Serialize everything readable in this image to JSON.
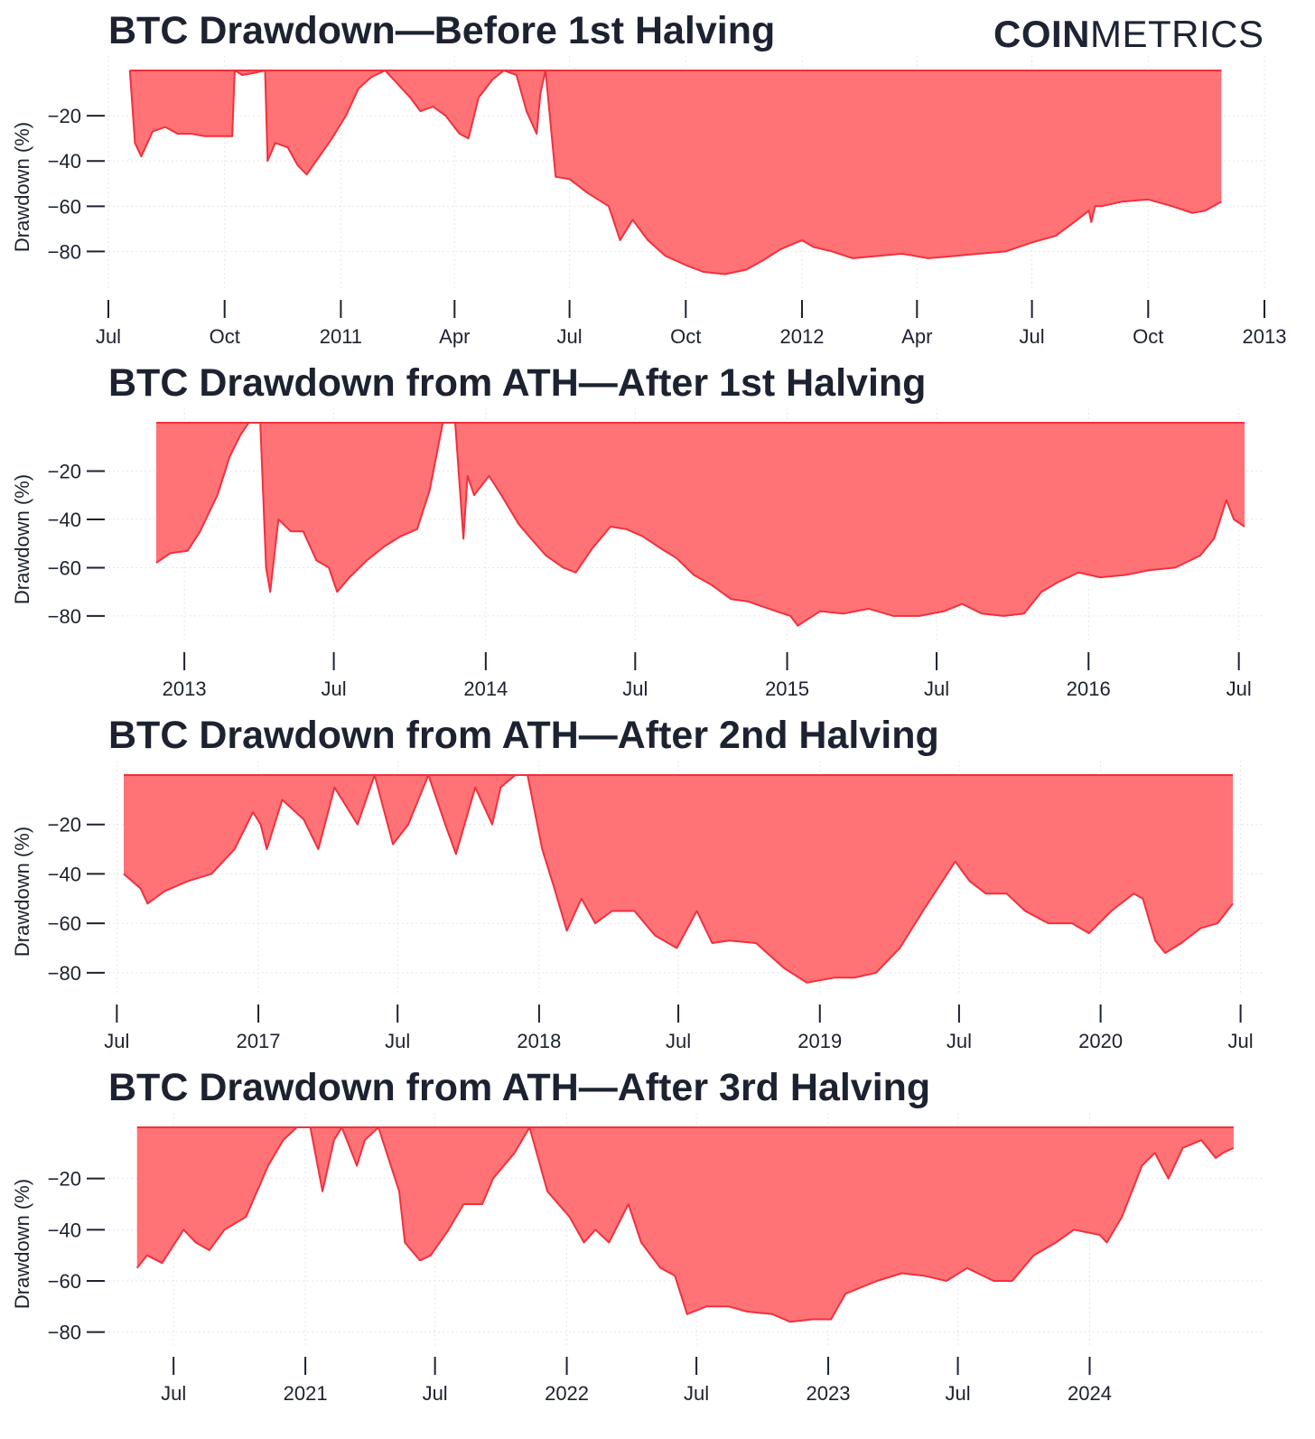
{
  "logo": {
    "bold": "COIN",
    "light": "METRICS"
  },
  "colors": {
    "fill": "#ff7276",
    "line": "#f2303d",
    "text": "#1c2230",
    "grid": "#e6e6e6"
  },
  "chart_data": [
    {
      "type": "area",
      "title": "BTC Drawdown—Before 1st Halving",
      "ylabel": "Drawdown (%)",
      "ylim": [
        -95,
        0
      ],
      "yticks": [
        -20,
        -40,
        -60,
        -80
      ],
      "xlim": [
        "2010-07-01",
        "2013-01-01"
      ],
      "xticks": [
        {
          "date": "2010-07-01",
          "label": "Jul"
        },
        {
          "date": "2010-10-01",
          "label": "Oct"
        },
        {
          "date": "2011-01-01",
          "label": "2011"
        },
        {
          "date": "2011-04-01",
          "label": "Apr"
        },
        {
          "date": "2011-07-01",
          "label": "Jul"
        },
        {
          "date": "2011-10-01",
          "label": "Oct"
        },
        {
          "date": "2012-01-01",
          "label": "2012"
        },
        {
          "date": "2012-04-01",
          "label": "Apr"
        },
        {
          "date": "2012-07-01",
          "label": "Jul"
        },
        {
          "date": "2012-10-01",
          "label": "Oct"
        },
        {
          "date": "2013-01-01",
          "label": "2013"
        }
      ],
      "grid": true,
      "x": [
        "2010-07-18",
        "2010-07-22",
        "2010-07-27",
        "2010-08-05",
        "2010-08-15",
        "2010-08-25",
        "2010-09-05",
        "2010-09-15",
        "2010-09-25",
        "2010-10-07",
        "2010-10-09",
        "2010-10-15",
        "2010-10-25",
        "2010-11-02",
        "2010-11-04",
        "2010-11-10",
        "2010-11-20",
        "2010-11-28",
        "2010-12-05",
        "2010-12-15",
        "2010-12-25",
        "2011-01-05",
        "2011-01-15",
        "2011-01-25",
        "2011-02-05",
        "2011-02-15",
        "2011-02-25",
        "2011-03-05",
        "2011-03-15",
        "2011-03-25",
        "2011-04-05",
        "2011-04-12",
        "2011-04-20",
        "2011-05-01",
        "2011-05-10",
        "2011-05-20",
        "2011-05-28",
        "2011-06-05",
        "2011-06-08",
        "2011-06-12",
        "2011-06-20",
        "2011-07-01",
        "2011-07-15",
        "2011-08-01",
        "2011-08-10",
        "2011-08-20",
        "2011-09-01",
        "2011-09-15",
        "2011-10-01",
        "2011-10-15",
        "2011-11-01",
        "2011-11-18",
        "2011-12-01",
        "2011-12-15",
        "2012-01-01",
        "2012-01-10",
        "2012-01-25",
        "2012-02-10",
        "2012-03-01",
        "2012-03-20",
        "2012-04-10",
        "2012-05-01",
        "2012-05-20",
        "2012-06-10",
        "2012-07-01",
        "2012-07-20",
        "2012-08-01",
        "2012-08-15",
        "2012-08-17",
        "2012-08-20",
        "2012-08-25",
        "2012-09-10",
        "2012-10-01",
        "2012-10-20",
        "2012-11-05",
        "2012-11-15",
        "2012-11-28"
      ],
      "values": [
        0,
        -32,
        -38,
        -27,
        -25,
        -28,
        -28,
        -29,
        -29,
        -29,
        0,
        -2,
        -1,
        0,
        -40,
        -32,
        -34,
        -42,
        -46,
        -38,
        -30,
        -20,
        -8,
        -3,
        0,
        -6,
        -12,
        -18,
        -16,
        -20,
        -28,
        -30,
        -12,
        -4,
        0,
        -2,
        -18,
        -28,
        -10,
        0,
        -47,
        -48,
        -54,
        -60,
        -75,
        -66,
        -75,
        -82,
        -86,
        -89,
        -90,
        -88,
        -84,
        -79,
        -75,
        -78,
        -80,
        -83,
        -82,
        -81,
        -83,
        -82,
        -81,
        -80,
        -76,
        -73,
        -68,
        -62,
        -67,
        -60,
        -60,
        -58,
        -57,
        -60,
        -63,
        -62,
        -58
      ]
    },
    {
      "type": "area",
      "title": "BTC Drawdown from ATH—After 1st Halving",
      "ylabel": "Drawdown (%)",
      "ylim": [
        -89,
        0
      ],
      "yticks": [
        -20,
        -40,
        -60,
        -80
      ],
      "xlim": [
        "2012-10-01",
        "2016-08-01"
      ],
      "xticks": [
        {
          "date": "2013-01-01",
          "label": "2013"
        },
        {
          "date": "2013-07-01",
          "label": "Jul"
        },
        {
          "date": "2014-01-01",
          "label": "2014"
        },
        {
          "date": "2014-07-01",
          "label": "Jul"
        },
        {
          "date": "2015-01-01",
          "label": "2015"
        },
        {
          "date": "2015-07-01",
          "label": "Jul"
        },
        {
          "date": "2016-01-01",
          "label": "2016"
        },
        {
          "date": "2016-07-01",
          "label": "Jul"
        }
      ],
      "grid": true,
      "x": [
        "2012-11-28",
        "2012-12-15",
        "2013-01-05",
        "2013-01-20",
        "2013-02-10",
        "2013-02-25",
        "2013-03-10",
        "2013-03-20",
        "2013-04-03",
        "2013-04-10",
        "2013-04-15",
        "2013-04-25",
        "2013-05-10",
        "2013-05-25",
        "2013-06-10",
        "2013-06-25",
        "2013-07-05",
        "2013-07-20",
        "2013-08-10",
        "2013-09-01",
        "2013-09-20",
        "2013-10-10",
        "2013-10-25",
        "2013-11-10",
        "2013-11-25",
        "2013-12-05",
        "2013-12-10",
        "2013-12-18",
        "2014-01-05",
        "2014-01-20",
        "2014-02-10",
        "2014-02-25",
        "2014-03-15",
        "2014-04-05",
        "2014-04-20",
        "2014-05-10",
        "2014-06-01",
        "2014-06-20",
        "2014-07-10",
        "2014-08-01",
        "2014-08-20",
        "2014-09-10",
        "2014-10-01",
        "2014-10-25",
        "2014-11-15",
        "2014-12-10",
        "2015-01-05",
        "2015-01-14",
        "2015-02-10",
        "2015-03-10",
        "2015-04-10",
        "2015-05-10",
        "2015-06-10",
        "2015-07-10",
        "2015-08-01",
        "2015-08-25",
        "2015-09-20",
        "2015-10-15",
        "2015-11-05",
        "2015-11-25",
        "2015-12-20",
        "2016-01-15",
        "2016-02-15",
        "2016-03-15",
        "2016-04-15",
        "2016-05-15",
        "2016-06-01",
        "2016-06-16",
        "2016-06-25",
        "2016-07-08"
      ],
      "values": [
        -58,
        -54,
        -53,
        -45,
        -30,
        -14,
        -5,
        0,
        0,
        -60,
        -70,
        -40,
        -45,
        -45,
        -57,
        -60,
        -70,
        -64,
        -57,
        -51,
        -47,
        -44,
        -28,
        0,
        0,
        -48,
        -22,
        -30,
        -22,
        -30,
        -42,
        -48,
        -55,
        -60,
        -62,
        -52,
        -43,
        -44,
        -47,
        -52,
        -56,
        -63,
        -67,
        -73,
        -74,
        -77,
        -80,
        -84,
        -78,
        -79,
        -77,
        -80,
        -80,
        -78,
        -75,
        -79,
        -80,
        -79,
        -70,
        -66,
        -62,
        -64,
        -63,
        -61,
        -60,
        -55,
        -48,
        -32,
        -40,
        -43
      ]
    },
    {
      "type": "area",
      "title": "BTC Drawdown from ATH—After 2nd Halving",
      "ylabel": "Drawdown (%)",
      "ylim": [
        -87,
        0
      ],
      "yticks": [
        -20,
        -40,
        -60,
        -80
      ],
      "xlim": [
        "2016-06-20",
        "2020-08-01"
      ],
      "xticks": [
        {
          "date": "2016-07-01",
          "label": "Jul"
        },
        {
          "date": "2017-01-01",
          "label": "2017"
        },
        {
          "date": "2017-07-01",
          "label": "Jul"
        },
        {
          "date": "2018-01-01",
          "label": "2018"
        },
        {
          "date": "2018-07-01",
          "label": "Jul"
        },
        {
          "date": "2019-01-01",
          "label": "2019"
        },
        {
          "date": "2019-07-01",
          "label": "Jul"
        },
        {
          "date": "2020-01-01",
          "label": "2020"
        },
        {
          "date": "2020-07-01",
          "label": "Jul"
        }
      ],
      "grid": true,
      "x": [
        "2016-07-10",
        "2016-08-01",
        "2016-08-10",
        "2016-09-01",
        "2016-10-01",
        "2016-11-01",
        "2016-12-01",
        "2016-12-25",
        "2017-01-04",
        "2017-01-12",
        "2017-02-01",
        "2017-03-01",
        "2017-03-20",
        "2017-04-10",
        "2017-05-10",
        "2017-06-01",
        "2017-06-25",
        "2017-07-15",
        "2017-08-10",
        "2017-09-01",
        "2017-09-15",
        "2017-10-10",
        "2017-11-01",
        "2017-11-12",
        "2017-12-01",
        "2017-12-17",
        "2018-01-05",
        "2018-01-20",
        "2018-02-06",
        "2018-02-25",
        "2018-03-15",
        "2018-04-06",
        "2018-05-05",
        "2018-06-01",
        "2018-06-29",
        "2018-07-25",
        "2018-08-14",
        "2018-09-05",
        "2018-10-10",
        "2018-11-15",
        "2018-12-15",
        "2019-01-20",
        "2019-02-15",
        "2019-03-15",
        "2019-04-15",
        "2019-05-15",
        "2019-06-26",
        "2019-07-15",
        "2019-08-05",
        "2019-09-01",
        "2019-09-25",
        "2019-10-25",
        "2019-11-25",
        "2019-12-17",
        "2020-01-15",
        "2020-02-13",
        "2020-02-25",
        "2020-03-12",
        "2020-03-25",
        "2020-04-15",
        "2020-05-10",
        "2020-06-01",
        "2020-06-21"
      ],
      "values": [
        -40,
        -46,
        -52,
        -47,
        -43,
        -40,
        -30,
        -15,
        -20,
        -30,
        -10,
        -18,
        -30,
        -5,
        -20,
        0,
        -28,
        -20,
        0,
        -20,
        -32,
        -5,
        -20,
        -5,
        0,
        0,
        -30,
        -45,
        -63,
        -50,
        -60,
        -55,
        -55,
        -65,
        -70,
        -55,
        -68,
        -67,
        -68,
        -78,
        -84,
        -82,
        -82,
        -80,
        -70,
        -55,
        -35,
        -43,
        -48,
        -48,
        -55,
        -60,
        -60,
        -64,
        -55,
        -48,
        -50,
        -67,
        -72,
        -68,
        -62,
        -60,
        -52
      ]
    },
    {
      "type": "area",
      "title": "BTC Drawdown from ATH—After 3rd Halving",
      "ylabel": "Drawdown (%)",
      "ylim": [
        -84,
        0
      ],
      "yticks": [
        -20,
        -40,
        -60,
        -80
      ],
      "xlim": [
        "2020-04-01",
        "2024-09-01"
      ],
      "xticks": [
        {
          "date": "2020-07-01",
          "label": "Jul"
        },
        {
          "date": "2021-01-01",
          "label": "2021"
        },
        {
          "date": "2021-07-01",
          "label": "Jul"
        },
        {
          "date": "2022-01-01",
          "label": "2022"
        },
        {
          "date": "2022-07-01",
          "label": "Jul"
        },
        {
          "date": "2023-01-01",
          "label": "2023"
        },
        {
          "date": "2023-07-01",
          "label": "Jul"
        },
        {
          "date": "2024-01-01",
          "label": "2024"
        }
      ],
      "grid": true,
      "x": [
        "2020-05-11",
        "2020-05-25",
        "2020-06-15",
        "2020-07-15",
        "2020-08-01",
        "2020-08-20",
        "2020-09-10",
        "2020-10-10",
        "2020-11-10",
        "2020-12-01",
        "2020-12-20",
        "2021-01-08",
        "2021-01-25",
        "2021-02-10",
        "2021-02-21",
        "2021-03-14",
        "2021-03-25",
        "2021-04-13",
        "2021-05-12",
        "2021-05-20",
        "2021-06-10",
        "2021-06-25",
        "2021-07-20",
        "2021-08-10",
        "2021-09-05",
        "2021-09-20",
        "2021-10-20",
        "2021-11-10",
        "2021-12-05",
        "2022-01-05",
        "2022-01-25",
        "2022-02-10",
        "2022-03-01",
        "2022-03-28",
        "2022-04-15",
        "2022-05-12",
        "2022-06-01",
        "2022-06-18",
        "2022-07-15",
        "2022-08-15",
        "2022-09-10",
        "2022-10-15",
        "2022-11-09",
        "2022-12-10",
        "2023-01-05",
        "2023-01-25",
        "2023-03-10",
        "2023-04-14",
        "2023-05-15",
        "2023-06-15",
        "2023-07-14",
        "2023-08-20",
        "2023-09-15",
        "2023-10-15",
        "2023-11-15",
        "2023-12-10",
        "2024-01-15",
        "2024-01-25",
        "2024-02-15",
        "2024-03-14",
        "2024-04-01",
        "2024-04-20",
        "2024-05-10",
        "2024-06-05",
        "2024-06-25",
        "2024-07-05",
        "2024-07-20"
      ],
      "values": [
        -55,
        -50,
        -53,
        -40,
        -45,
        -48,
        -40,
        -35,
        -15,
        -5,
        0,
        0,
        -25,
        -5,
        0,
        -15,
        -5,
        0,
        -25,
        -45,
        -52,
        -50,
        -40,
        -30,
        -30,
        -20,
        -10,
        0,
        -25,
        -35,
        -45,
        -40,
        -45,
        -30,
        -45,
        -55,
        -58,
        -73,
        -70,
        -70,
        -72,
        -73,
        -76,
        -75,
        -75,
        -65,
        -60,
        -57,
        -58,
        -60,
        -55,
        -60,
        -60,
        -50,
        -45,
        -40,
        -42,
        -45,
        -35,
        -15,
        -10,
        -20,
        -8,
        -5,
        -12,
        -10,
        -8
      ]
    }
  ]
}
